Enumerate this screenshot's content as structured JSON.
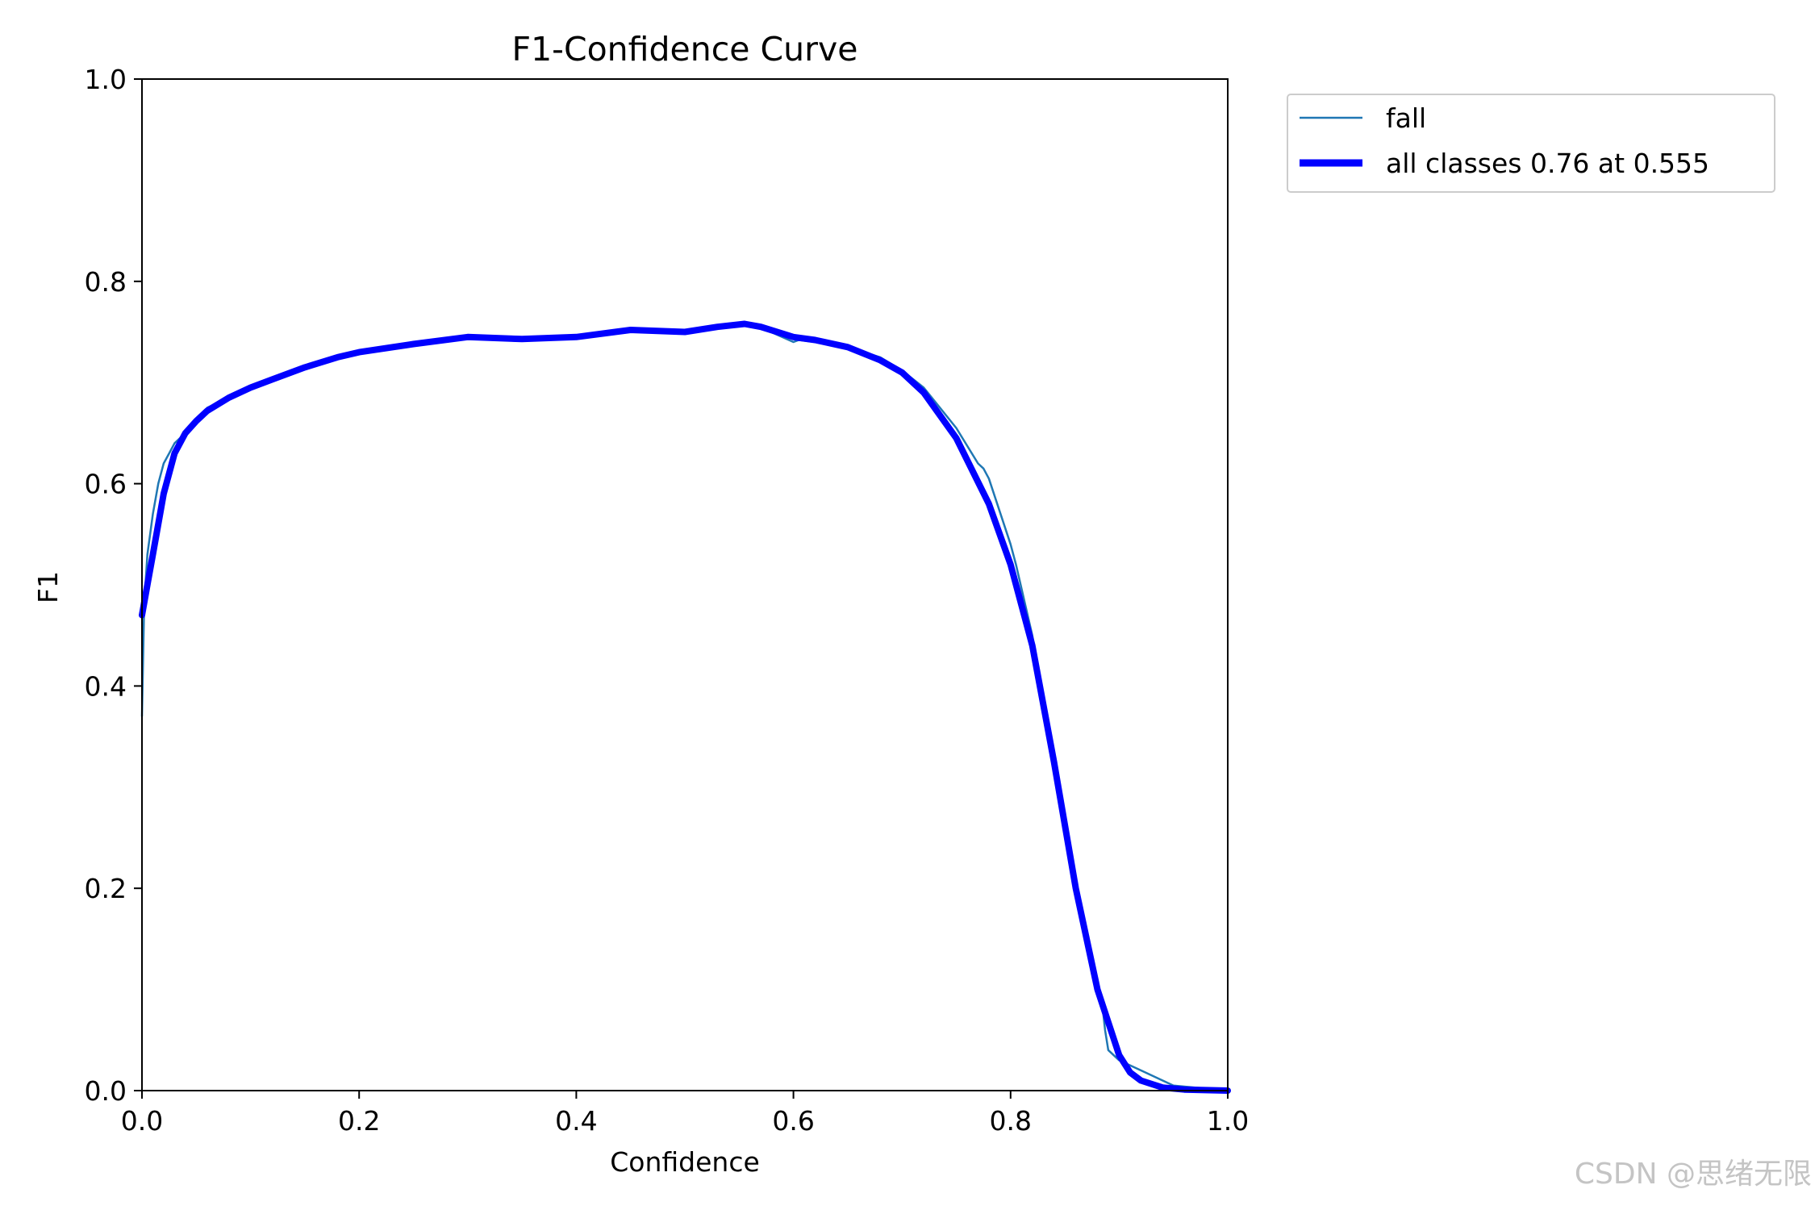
{
  "chart_data": {
    "type": "line",
    "title": "F1-Confidence Curve",
    "xlabel": "Confidence",
    "ylabel": "F1",
    "xlim": [
      0,
      1
    ],
    "ylim": [
      0,
      1
    ],
    "xticks": [
      "0.0",
      "0.2",
      "0.4",
      "0.6",
      "0.8",
      "1.0"
    ],
    "yticks": [
      "0.0",
      "0.2",
      "0.4",
      "0.6",
      "0.8",
      "1.0"
    ],
    "grid": false,
    "legend_position": "outside-top-right",
    "series": [
      {
        "name": "fall",
        "color": "#1f77b4",
        "x": [
          0,
          0.002,
          0.005,
          0.01,
          0.015,
          0.02,
          0.025,
          0.03,
          0.04,
          0.05,
          0.06,
          0.07,
          0.08,
          0.1,
          0.12,
          0.15,
          0.18,
          0.2,
          0.25,
          0.3,
          0.35,
          0.4,
          0.45,
          0.5,
          0.55,
          0.575,
          0.6,
          0.605,
          0.62,
          0.65,
          0.68,
          0.7,
          0.72,
          0.75,
          0.77,
          0.775,
          0.78,
          0.8,
          0.805,
          0.82,
          0.84,
          0.86,
          0.87,
          0.88,
          0.885,
          0.887,
          0.89,
          0.9,
          0.92,
          0.95,
          1.0
        ],
        "y": [
          0.37,
          0.48,
          0.53,
          0.57,
          0.6,
          0.62,
          0.63,
          0.64,
          0.65,
          0.66,
          0.675,
          0.68,
          0.685,
          0.695,
          0.703,
          0.715,
          0.725,
          0.73,
          0.738,
          0.745,
          0.743,
          0.745,
          0.752,
          0.75,
          0.758,
          0.752,
          0.74,
          0.742,
          0.74,
          0.735,
          0.725,
          0.712,
          0.695,
          0.655,
          0.62,
          0.615,
          0.605,
          0.54,
          0.52,
          0.45,
          0.33,
          0.21,
          0.15,
          0.11,
          0.08,
          0.06,
          0.04,
          0.03,
          0.02,
          0.005,
          0.0
        ]
      },
      {
        "name": "all classes 0.76 at 0.555",
        "color": "#0000ff",
        "x": [
          0,
          0.005,
          0.01,
          0.02,
          0.03,
          0.04,
          0.05,
          0.06,
          0.08,
          0.1,
          0.12,
          0.15,
          0.18,
          0.2,
          0.25,
          0.3,
          0.35,
          0.4,
          0.45,
          0.5,
          0.53,
          0.555,
          0.57,
          0.6,
          0.62,
          0.65,
          0.68,
          0.7,
          0.72,
          0.75,
          0.78,
          0.8,
          0.82,
          0.84,
          0.86,
          0.88,
          0.9,
          0.91,
          0.92,
          0.94,
          0.96,
          1.0
        ],
        "y": [
          0.47,
          0.5,
          0.53,
          0.59,
          0.63,
          0.65,
          0.662,
          0.672,
          0.685,
          0.695,
          0.703,
          0.715,
          0.725,
          0.73,
          0.738,
          0.745,
          0.743,
          0.745,
          0.752,
          0.75,
          0.755,
          0.758,
          0.755,
          0.745,
          0.742,
          0.735,
          0.722,
          0.71,
          0.69,
          0.645,
          0.58,
          0.52,
          0.44,
          0.325,
          0.2,
          0.1,
          0.035,
          0.018,
          0.01,
          0.003,
          0.001,
          0.0
        ]
      }
    ]
  },
  "watermark": "CSDN @思绪无限"
}
